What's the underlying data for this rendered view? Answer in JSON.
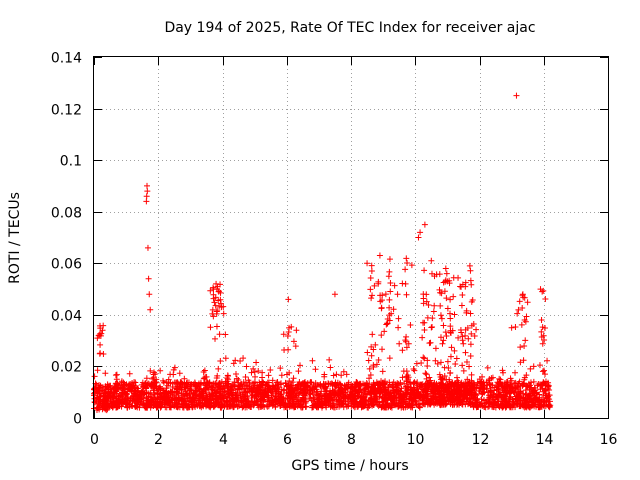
{
  "chart_data": {
    "type": "scatter",
    "title": "Day 194 of 2025, Rate Of TEC Index for receiver ajac",
    "xlabel": "GPS time / hours",
    "ylabel": "ROTI / TECUs",
    "xlim": [
      0,
      16
    ],
    "ylim": [
      0,
      0.14
    ],
    "x_ticks": [
      0,
      2,
      4,
      6,
      8,
      10,
      12,
      14,
      16
    ],
    "x_tick_labels": [
      "0",
      "2",
      "4",
      "6",
      "8",
      "10",
      "12",
      "14",
      "16"
    ],
    "y_ticks": [
      0,
      0.02,
      0.04,
      0.06,
      0.08,
      0.1,
      0.12,
      0.14
    ],
    "y_tick_labels": [
      "0",
      "0.02",
      "0.04",
      "0.06",
      "0.08",
      "0.1",
      "0.12",
      "0.14"
    ],
    "grid": true,
    "marker": "+",
    "marker_color": "#ff0000",
    "data_range_hours": [
      0,
      14.2
    ],
    "baseline_roti": 0.01,
    "noise": [
      {
        "t0": 0.0,
        "t1": 0.5,
        "y0": 0.003,
        "y1": 0.022,
        "n": 120
      },
      {
        "t0": 0.5,
        "t1": 1.5,
        "y0": 0.004,
        "y1": 0.02,
        "n": 220
      },
      {
        "t0": 1.5,
        "t1": 2.2,
        "y0": 0.004,
        "y1": 0.026,
        "n": 160
      },
      {
        "t0": 2.2,
        "t1": 3.4,
        "y0": 0.004,
        "y1": 0.022,
        "n": 260
      },
      {
        "t0": 3.4,
        "t1": 4.4,
        "y0": 0.004,
        "y1": 0.028,
        "n": 240
      },
      {
        "t0": 4.4,
        "t1": 6.0,
        "y0": 0.004,
        "y1": 0.024,
        "n": 340
      },
      {
        "t0": 6.0,
        "t1": 7.5,
        "y0": 0.004,
        "y1": 0.026,
        "n": 320
      },
      {
        "t0": 7.5,
        "t1": 8.5,
        "y0": 0.004,
        "y1": 0.024,
        "n": 220
      },
      {
        "t0": 8.5,
        "t1": 10.2,
        "y0": 0.004,
        "y1": 0.03,
        "n": 400
      },
      {
        "t0": 10.2,
        "t1": 11.8,
        "y0": 0.005,
        "y1": 0.036,
        "n": 480
      },
      {
        "t0": 11.8,
        "t1": 13.0,
        "y0": 0.004,
        "y1": 0.024,
        "n": 260
      },
      {
        "t0": 13.0,
        "t1": 14.2,
        "y0": 0.004,
        "y1": 0.024,
        "n": 260
      }
    ],
    "upper_band": [
      {
        "t0": 0.05,
        "t1": 0.3,
        "y0": 0.024,
        "y1": 0.036,
        "n": 14
      },
      {
        "t0": 3.6,
        "t1": 4.1,
        "y0": 0.03,
        "y1": 0.052,
        "n": 30
      },
      {
        "t0": 5.9,
        "t1": 6.3,
        "y0": 0.024,
        "y1": 0.036,
        "n": 10
      },
      {
        "t0": 8.6,
        "t1": 9.9,
        "y0": 0.026,
        "y1": 0.062,
        "n": 50
      },
      {
        "t0": 10.2,
        "t1": 11.9,
        "y0": 0.03,
        "y1": 0.058,
        "n": 80
      },
      {
        "t0": 13.1,
        "t1": 13.5,
        "y0": 0.024,
        "y1": 0.048,
        "n": 16
      },
      {
        "t0": 13.8,
        "t1": 14.1,
        "y0": 0.024,
        "y1": 0.05,
        "n": 10
      }
    ],
    "spikes": [
      {
        "x": 1.65,
        "y": 0.09
      },
      {
        "x": 1.66,
        "y": 0.088
      },
      {
        "x": 1.64,
        "y": 0.086
      },
      {
        "x": 1.63,
        "y": 0.084
      },
      {
        "x": 1.68,
        "y": 0.066
      },
      {
        "x": 1.7,
        "y": 0.054
      },
      {
        "x": 1.72,
        "y": 0.048
      },
      {
        "x": 1.75,
        "y": 0.042
      },
      {
        "x": 3.72,
        "y": 0.05
      },
      {
        "x": 3.8,
        "y": 0.052
      },
      {
        "x": 3.88,
        "y": 0.049
      },
      {
        "x": 6.05,
        "y": 0.046
      },
      {
        "x": 7.5,
        "y": 0.048
      },
      {
        "x": 8.5,
        "y": 0.06
      },
      {
        "x": 8.65,
        "y": 0.057
      },
      {
        "x": 8.9,
        "y": 0.063
      },
      {
        "x": 9.45,
        "y": 0.048
      },
      {
        "x": 9.7,
        "y": 0.052
      },
      {
        "x": 10.1,
        "y": 0.07
      },
      {
        "x": 10.15,
        "y": 0.072
      },
      {
        "x": 10.3,
        "y": 0.075
      },
      {
        "x": 10.5,
        "y": 0.061
      },
      {
        "x": 10.6,
        "y": 0.055
      },
      {
        "x": 11.0,
        "y": 0.053
      },
      {
        "x": 11.7,
        "y": 0.059
      },
      {
        "x": 13.0,
        "y": 0.035
      },
      {
        "x": 13.15,
        "y": 0.125
      },
      {
        "x": 13.35,
        "y": 0.048
      },
      {
        "x": 13.9,
        "y": 0.05
      },
      {
        "x": 13.95,
        "y": 0.049
      }
    ]
  }
}
